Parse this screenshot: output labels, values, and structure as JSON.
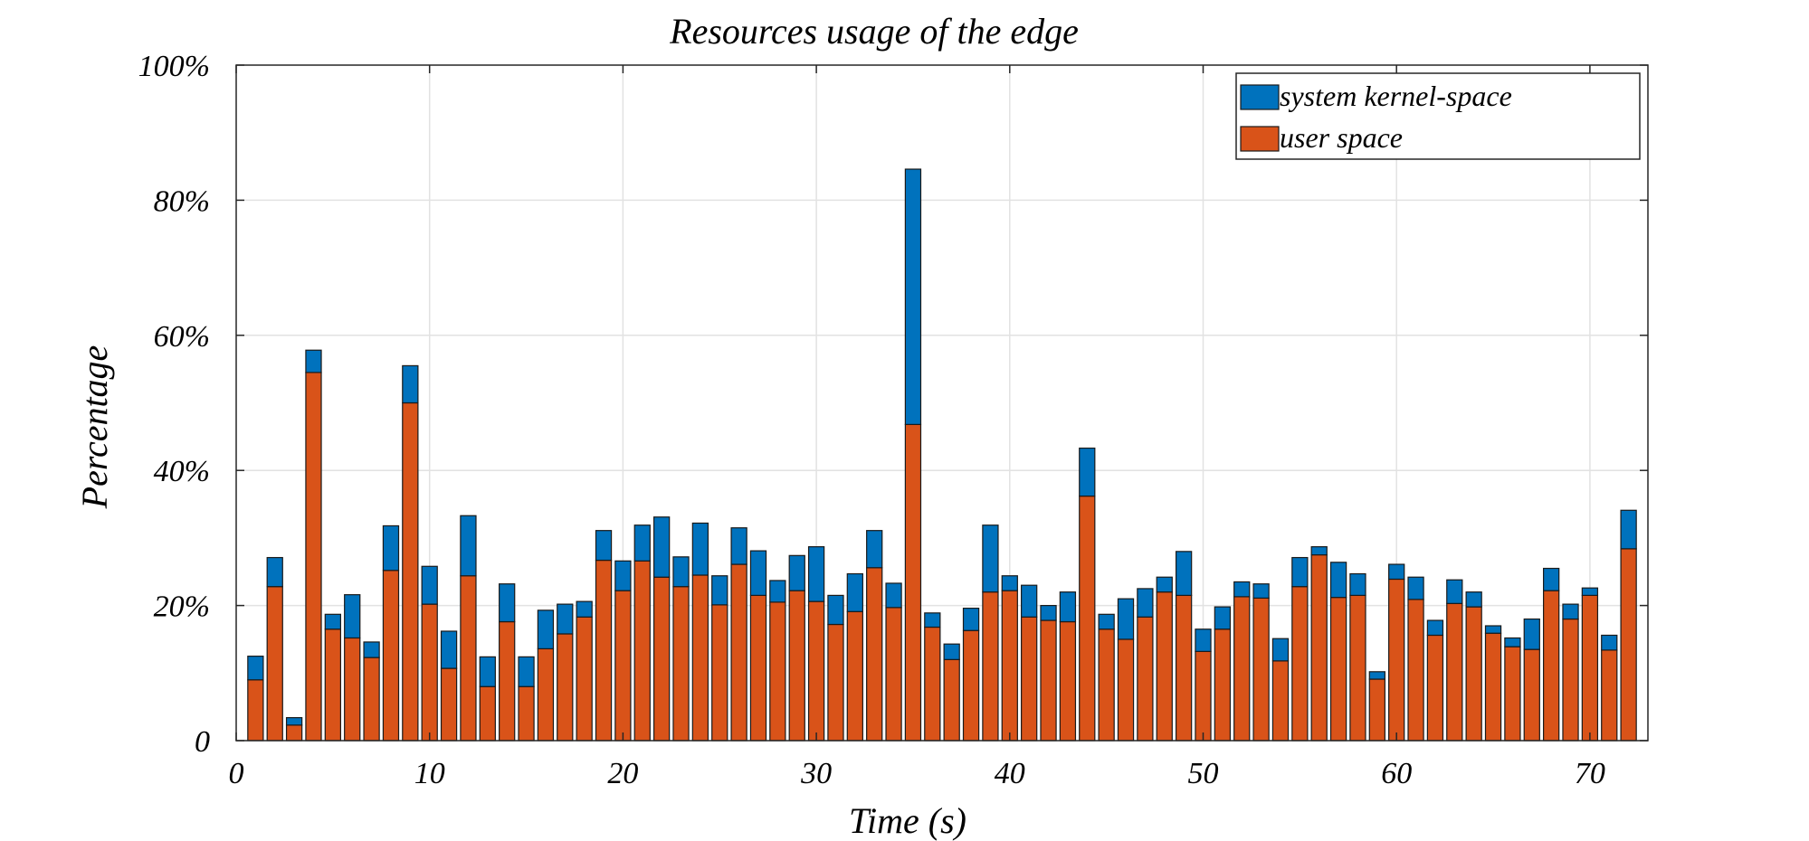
{
  "chart_data": {
    "type": "bar",
    "stacked": true,
    "title": "Resources usage of the edge",
    "xlabel": "Time (s)",
    "ylabel": "Percentage",
    "xlim": [
      0,
      73
    ],
    "ylim": [
      0,
      100
    ],
    "x_ticks": [
      0,
      10,
      20,
      30,
      40,
      50,
      60,
      70
    ],
    "x_tick_labels": [
      "0",
      "10",
      "20",
      "30",
      "40",
      "50",
      "60",
      "70"
    ],
    "y_ticks": [
      0,
      20,
      40,
      60,
      80,
      100
    ],
    "y_tick_labels": [
      "0",
      "20%",
      "40%",
      "60%",
      "80%",
      "100%"
    ],
    "grid": true,
    "legend_position": "top-right",
    "x": [
      1,
      2,
      3,
      4,
      5,
      6,
      7,
      8,
      9,
      10,
      11,
      12,
      13,
      14,
      15,
      16,
      17,
      18,
      19,
      20,
      21,
      22,
      23,
      24,
      25,
      26,
      27,
      28,
      29,
      30,
      31,
      32,
      33,
      34,
      35,
      36,
      37,
      38,
      39,
      40,
      41,
      42,
      43,
      44,
      45,
      46,
      47,
      48,
      49,
      50,
      51,
      52,
      53,
      54,
      55,
      56,
      57,
      58,
      59,
      60,
      61,
      62,
      63,
      64,
      65,
      66,
      67,
      68,
      69,
      70,
      71,
      72
    ],
    "series": [
      {
        "name": "user space",
        "color": "#D95319",
        "values": [
          9,
          22.8,
          2.3,
          54.5,
          16.5,
          15.2,
          12.3,
          25.2,
          50,
          20.2,
          10.7,
          24.4,
          8,
          17.6,
          8,
          13.6,
          15.8,
          18.3,
          26.7,
          22.2,
          26.6,
          24.2,
          22.8,
          24.5,
          20.1,
          26.1,
          21.5,
          20.5,
          22.2,
          20.6,
          17.2,
          19.1,
          25.6,
          19.7,
          46.8,
          16.8,
          12,
          16.3,
          22,
          22.2,
          18.3,
          17.8,
          17.6,
          36.2,
          16.5,
          15,
          18.3,
          22,
          21.5,
          13.2,
          16.5,
          21.3,
          21.1,
          11.8,
          22.8,
          27.5,
          21.2,
          21.5,
          9.1,
          23.9,
          20.9,
          15.6,
          20.3,
          19.8,
          15.9,
          13.9,
          13.5,
          22.2,
          18,
          21.5,
          13.4,
          28.4
        ]
      },
      {
        "name": "system kernel-space",
        "color": "#0072BD",
        "values": [
          3.5,
          4.3,
          1.1,
          3.3,
          2.2,
          6.4,
          2.3,
          6.6,
          5.5,
          5.6,
          5.5,
          8.9,
          4.4,
          5.6,
          4.4,
          5.7,
          4.4,
          2.3,
          4.4,
          4.4,
          5.3,
          8.9,
          4.4,
          7.7,
          4.3,
          5.4,
          6.6,
          3.2,
          5.2,
          8.1,
          4.3,
          5.6,
          5.5,
          3.6,
          37.8,
          2.1,
          2.3,
          3.3,
          9.9,
          2.2,
          4.7,
          2.2,
          4.4,
          7.1,
          2.2,
          6,
          4.2,
          2.2,
          6.5,
          3.3,
          3.3,
          2.2,
          2.1,
          3.3,
          4.3,
          1.2,
          5.2,
          3.2,
          1.1,
          2.2,
          3.3,
          2.2,
          3.5,
          2.2,
          1.1,
          1.3,
          4.5,
          3.3,
          2.2,
          1.1,
          2.2,
          5.7
        ]
      }
    ]
  }
}
